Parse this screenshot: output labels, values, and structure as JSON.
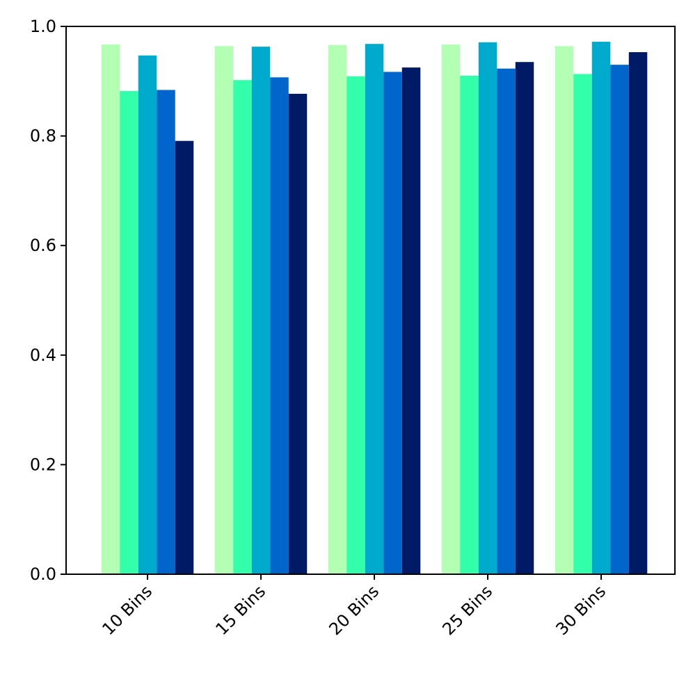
{
  "chart_data": {
    "type": "bar",
    "title": "",
    "xlabel": "",
    "ylabel": "",
    "categories": [
      "10 Bins",
      "15 Bins",
      "20 Bins",
      "25 Bins",
      "30 Bins"
    ],
    "ylim": [
      0,
      1.0
    ],
    "yticks": [
      "0.0",
      "0.2",
      "0.4",
      "0.6",
      "0.8",
      "1.0"
    ],
    "legend": "none",
    "grid": false,
    "series": [
      {
        "color": "#b3ffb3",
        "values": [
          0.967,
          0.964,
          0.966,
          0.967,
          0.964
        ]
      },
      {
        "color": "#33ffaa",
        "values": [
          0.882,
          0.902,
          0.909,
          0.91,
          0.913
        ]
      },
      {
        "color": "#00aacc",
        "values": [
          0.947,
          0.963,
          0.968,
          0.971,
          0.972
        ]
      },
      {
        "color": "#0066cc",
        "values": [
          0.884,
          0.907,
          0.917,
          0.923,
          0.93
        ]
      },
      {
        "color": "#001a66",
        "values": [
          0.791,
          0.877,
          0.925,
          0.935,
          0.953
        ]
      }
    ]
  }
}
